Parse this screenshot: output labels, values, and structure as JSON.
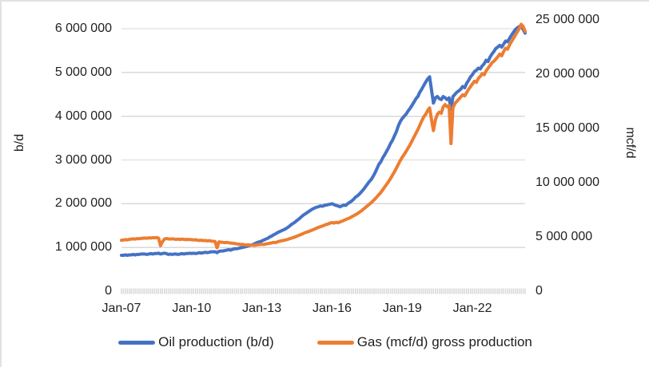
{
  "chart": {
    "left_axis": {
      "title": "b/d",
      "tick_labels": [
        "0",
        "1 000 000",
        "2 000 000",
        "3 000 000",
        "4 000 000",
        "5 000 000",
        "6 000 000"
      ],
      "tick_values_millions": [
        0,
        1,
        2,
        3,
        4,
        5,
        6
      ]
    },
    "right_axis": {
      "title": "mcf/d",
      "tick_labels": [
        "0",
        "5 000 000",
        "10 000 000",
        "15 000 000",
        "20 000 000",
        "25 000 000"
      ],
      "tick_values_millions": [
        0,
        5,
        10,
        15,
        20,
        25
      ]
    },
    "x_axis": {
      "tick_labels": [
        "Jan-07",
        "Jan-10",
        "Jan-13",
        "Jan-16",
        "Jan-19",
        "Jan-22"
      ],
      "tick_month_indices": [
        0,
        36,
        72,
        108,
        144,
        180
      ]
    },
    "legend": [
      {
        "label": "Oil production (b/d)",
        "color": "#4472C4"
      },
      {
        "label": "Gas (mcf/d) gross production",
        "color": "#ED7D31"
      }
    ],
    "colors": {
      "oil": "#4472C4",
      "gas": "#ED7D31",
      "gridline": "#d9d9d9",
      "tickband": "#d9d9d9"
    }
  },
  "chart_data": {
    "type": "line",
    "title": "",
    "x_unit": "month",
    "x_start": "Jan-07",
    "x_end": "Apr-24",
    "x_tick_labels": [
      "Jan-07",
      "Jan-10",
      "Jan-13",
      "Jan-16",
      "Jan-19",
      "Jan-22"
    ],
    "left_axis": {
      "label": "b/d",
      "range": [
        0,
        6000000
      ],
      "tick_step": 1000000
    },
    "right_axis": {
      "label": "mcf/d",
      "range": [
        0,
        25000000
      ],
      "tick_step": 5000000
    },
    "grid": "horizontal",
    "legend_position": "bottom",
    "series": [
      {
        "name": "Oil production (b/d)",
        "axis": "left",
        "color": "#4472C4",
        "unit": "b/d",
        "values_millions": [
          0.82,
          0.82,
          0.83,
          0.82,
          0.83,
          0.83,
          0.84,
          0.83,
          0.84,
          0.84,
          0.85,
          0.85,
          0.85,
          0.84,
          0.85,
          0.86,
          0.85,
          0.86,
          0.86,
          0.87,
          0.85,
          0.86,
          0.87,
          0.86,
          0.84,
          0.85,
          0.84,
          0.85,
          0.85,
          0.84,
          0.85,
          0.86,
          0.85,
          0.86,
          0.86,
          0.87,
          0.86,
          0.87,
          0.86,
          0.87,
          0.88,
          0.87,
          0.88,
          0.89,
          0.88,
          0.89,
          0.9,
          0.9,
          0.9,
          0.88,
          0.91,
          0.92,
          0.92,
          0.93,
          0.94,
          0.95,
          0.94,
          0.96,
          0.97,
          0.97,
          0.98,
          0.99,
          1.0,
          1.01,
          1.02,
          1.04,
          1.05,
          1.06,
          1.08,
          1.1,
          1.12,
          1.13,
          1.15,
          1.17,
          1.19,
          1.21,
          1.24,
          1.26,
          1.29,
          1.31,
          1.34,
          1.36,
          1.38,
          1.4,
          1.42,
          1.45,
          1.48,
          1.52,
          1.55,
          1.58,
          1.62,
          1.65,
          1.69,
          1.73,
          1.76,
          1.79,
          1.82,
          1.85,
          1.88,
          1.9,
          1.92,
          1.93,
          1.95,
          1.94,
          1.96,
          1.97,
          1.98,
          1.99,
          2.0,
          1.98,
          1.96,
          1.95,
          1.93,
          1.95,
          1.97,
          1.96,
          2.0,
          2.03,
          2.06,
          2.1,
          2.15,
          2.18,
          2.22,
          2.27,
          2.32,
          2.38,
          2.44,
          2.5,
          2.55,
          2.62,
          2.7,
          2.8,
          2.9,
          2.96,
          3.05,
          3.12,
          3.2,
          3.28,
          3.38,
          3.45,
          3.55,
          3.65,
          3.78,
          3.88,
          3.95,
          4.0,
          4.05,
          4.12,
          4.18,
          4.25,
          4.32,
          4.4,
          4.45,
          4.55,
          4.62,
          4.7,
          4.78,
          4.85,
          4.9,
          4.6,
          4.3,
          4.42,
          4.45,
          4.4,
          4.38,
          4.45,
          4.42,
          4.38,
          4.42,
          4.15,
          4.45,
          4.5,
          4.55,
          4.58,
          4.62,
          4.68,
          4.65,
          4.75,
          4.82,
          4.9,
          4.95,
          5.02,
          5.05,
          5.1,
          5.08,
          5.15,
          5.2,
          5.28,
          5.25,
          5.35,
          5.42,
          5.48,
          5.55,
          5.58,
          5.62,
          5.58,
          5.65,
          5.72,
          5.7,
          5.78,
          5.85,
          5.92,
          5.98,
          6.02,
          6.05,
          6.08,
          5.98,
          5.9
        ]
      },
      {
        "name": "Gas (mcf/d) gross production",
        "axis": "right",
        "color": "#ED7D31",
        "unit": "mcf/d",
        "values_millions": [
          4.7,
          4.72,
          4.75,
          4.73,
          4.78,
          4.8,
          4.82,
          4.8,
          4.85,
          4.83,
          4.87,
          4.88,
          4.9,
          4.88,
          4.92,
          4.9,
          4.94,
          4.92,
          4.95,
          4.9,
          4.2,
          4.55,
          4.8,
          4.85,
          4.82,
          4.8,
          4.83,
          4.8,
          4.78,
          4.8,
          4.77,
          4.8,
          4.78,
          4.75,
          4.78,
          4.76,
          4.75,
          4.72,
          4.74,
          4.7,
          4.68,
          4.7,
          4.66,
          4.68,
          4.64,
          4.66,
          4.62,
          4.6,
          4.58,
          4.0,
          4.55,
          4.52,
          4.5,
          4.48,
          4.5,
          4.46,
          4.44,
          4.42,
          4.4,
          4.36,
          4.34,
          4.3,
          4.32,
          4.28,
          4.26,
          4.28,
          4.24,
          4.26,
          4.22,
          4.25,
          4.28,
          4.3,
          4.32,
          4.3,
          4.35,
          4.38,
          4.42,
          4.45,
          4.5,
          4.48,
          4.55,
          4.6,
          4.65,
          4.68,
          4.72,
          4.76,
          4.82,
          4.88,
          4.94,
          5.0,
          5.08,
          5.15,
          5.22,
          5.3,
          5.38,
          5.45,
          5.5,
          5.58,
          5.65,
          5.72,
          5.8,
          5.88,
          5.95,
          6.0,
          6.08,
          6.15,
          6.2,
          6.28,
          6.32,
          6.28,
          6.35,
          6.3,
          6.38,
          6.45,
          6.52,
          6.6,
          6.68,
          6.75,
          6.85,
          6.95,
          7.05,
          7.15,
          7.28,
          7.4,
          7.55,
          7.7,
          7.85,
          8.0,
          8.15,
          8.32,
          8.5,
          8.7,
          8.9,
          9.1,
          9.35,
          9.6,
          9.85,
          10.1,
          10.4,
          10.7,
          11.0,
          11.35,
          11.7,
          12.05,
          12.35,
          12.6,
          12.9,
          13.2,
          13.5,
          13.85,
          14.2,
          14.55,
          14.9,
          15.3,
          15.7,
          16.05,
          16.3,
          16.65,
          16.9,
          15.8,
          14.8,
          15.8,
          16.3,
          16.5,
          16.4,
          17.0,
          17.2,
          17.0,
          17.1,
          13.6,
          16.9,
          17.3,
          17.5,
          17.7,
          17.9,
          18.1,
          18.0,
          18.3,
          18.6,
          18.85,
          19.1,
          19.35,
          19.25,
          19.6,
          19.8,
          20.05,
          19.95,
          20.3,
          20.55,
          20.8,
          21.05,
          21.2,
          21.4,
          21.6,
          21.85,
          21.7,
          22.1,
          22.4,
          22.3,
          22.7,
          23.0,
          23.3,
          23.6,
          23.9,
          24.2,
          24.6,
          24.4,
          23.95
        ]
      }
    ]
  }
}
